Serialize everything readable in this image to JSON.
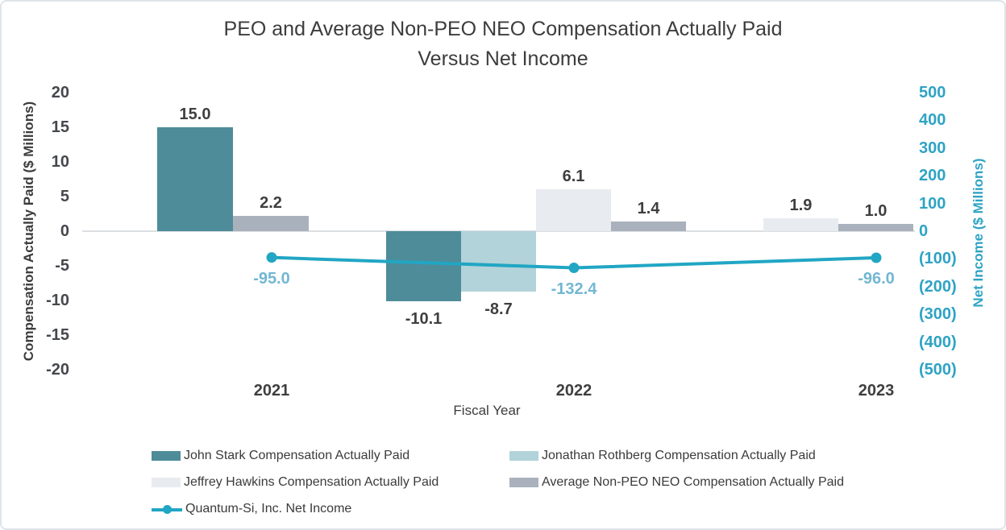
{
  "frame": {
    "background": "#FFFFFF",
    "border_color": "#DEE4EA"
  },
  "colors": {
    "title_text": "#3C3C3C",
    "axis_tick_text": "#45484D",
    "right_axis_text": "#2EA3C4",
    "bar_value_text": "#3F3F3F",
    "line_value_text": "#72B7D3",
    "zero_line": "#DCDFE2"
  },
  "chart_data": {
    "type": "combo-bar-line",
    "title_line1": "PEO and Average Non-PEO NEO Compensation Actually Paid",
    "title_line2": "Versus Net Income",
    "x": {
      "label": "Fiscal Year",
      "categories": [
        "2021",
        "2022",
        "2023"
      ]
    },
    "left_axis": {
      "label": "Compensation Actually Paid ($ Millions)",
      "min": -20,
      "max": 20,
      "tick_step": 5,
      "ticks": [
        "20",
        "15",
        "10",
        "5",
        "0",
        "-5",
        "-10",
        "-15",
        "-20"
      ]
    },
    "right_axis": {
      "label": "Net Income ($ Millions)",
      "min": -500,
      "max": 500,
      "tick_step": 100,
      "ticks": [
        "500",
        "400",
        "300",
        "200",
        "100",
        "0",
        "(100)",
        "(200)",
        "(300)",
        "(400)",
        "(500)"
      ]
    },
    "grid": "zero-line-only",
    "legend_position": "bottom-left-two-columns",
    "series": [
      {
        "name": "John Stark Compensation Actually Paid",
        "type": "bar",
        "axis": "left",
        "color": "#4E8C99",
        "values": [
          15.0,
          -10.1,
          null
        ],
        "value_labels": [
          "15.0",
          "-10.1",
          null
        ]
      },
      {
        "name": "Jonathan Rothberg Compensation Actually Paid",
        "type": "bar",
        "axis": "left",
        "color": "#B2D3D9",
        "values": [
          null,
          -8.7,
          null
        ],
        "value_labels": [
          null,
          "-8.7",
          null
        ]
      },
      {
        "name": "Jeffrey Hawkins Compensation Actually Paid",
        "type": "bar",
        "axis": "left",
        "color": "#E8EBF0",
        "values": [
          null,
          6.1,
          1.9
        ],
        "value_labels": [
          null,
          "6.1",
          "1.9"
        ]
      },
      {
        "name": "Average Non-PEO NEO Compensation Actually Paid",
        "type": "bar",
        "axis": "left",
        "color": "#A9B2BC",
        "values": [
          2.2,
          1.4,
          1.0
        ],
        "value_labels": [
          "2.2",
          "1.4",
          "1.0"
        ]
      },
      {
        "name": "Quantum-Si, Inc. Net Income",
        "type": "line",
        "axis": "right",
        "color": "#21A6C4",
        "label_color": "#72B7D3",
        "values": [
          -95.0,
          -132.4,
          -96.0
        ],
        "value_labels": [
          "-95.0",
          "-132.4",
          "-96.0"
        ]
      }
    ]
  }
}
